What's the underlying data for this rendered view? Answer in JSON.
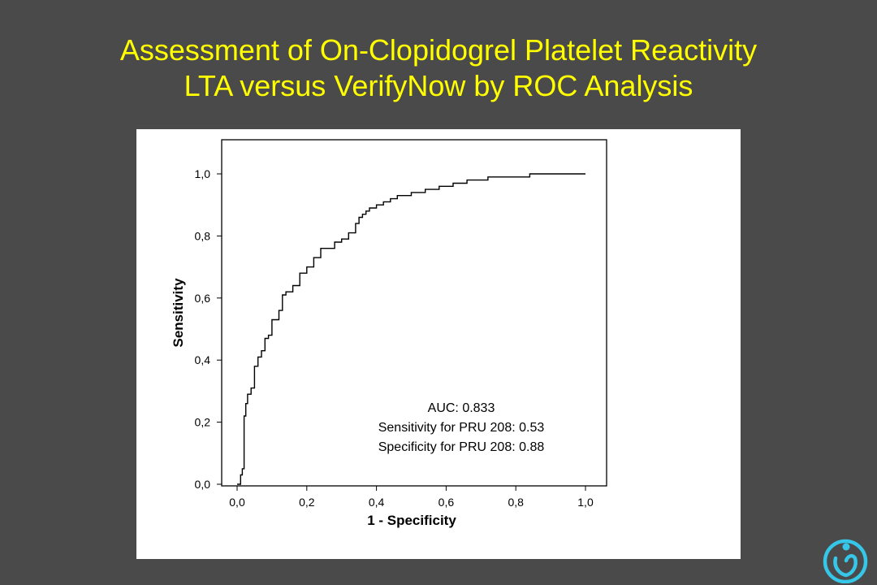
{
  "title": {
    "line1": "Assessment of On-Clopidogrel Platelet Reactivity",
    "line2": "LTA versus VerifyNow by ROC Analysis"
  },
  "colors": {
    "background": "#4a4a4a",
    "title": "#ffff00",
    "panel": "#ffffff",
    "curve": "#000000",
    "logo": "#35c6e8"
  },
  "logo": {
    "icon": "heart-person-icon"
  },
  "chart_data": {
    "type": "line",
    "xlabel": "1 - Specificity",
    "ylabel": "Sensitivity",
    "xlim": [
      0,
      1
    ],
    "ylim": [
      0,
      1
    ],
    "x_ticks": [
      "0,0",
      "0,2",
      "0,4",
      "0,6",
      "0,8",
      "1,0"
    ],
    "y_ticks": [
      "0,0",
      "0,2",
      "0,4",
      "0,6",
      "0,8",
      "1,0"
    ],
    "grid": false,
    "annotations": [
      "AUC: 0.833",
      "Sensitivity for PRU 208: 0.53",
      "Specificity for PRU 208: 0.88"
    ],
    "series": [
      {
        "x": [
          0.0,
          0.01,
          0.01,
          0.015,
          0.015,
          0.02,
          0.02,
          0.025,
          0.025,
          0.03,
          0.03,
          0.04,
          0.04,
          0.05,
          0.05,
          0.06,
          0.06,
          0.07,
          0.07,
          0.08,
          0.08,
          0.09,
          0.09,
          0.1,
          0.1,
          0.12,
          0.12,
          0.13,
          0.13,
          0.14,
          0.14,
          0.16,
          0.16,
          0.18,
          0.18,
          0.2,
          0.2,
          0.22,
          0.22,
          0.24,
          0.24,
          0.28,
          0.28,
          0.3,
          0.3,
          0.32,
          0.32,
          0.34,
          0.34,
          0.35,
          0.35,
          0.36,
          0.36,
          0.37,
          0.37,
          0.38,
          0.38,
          0.4,
          0.4,
          0.42,
          0.42,
          0.44,
          0.44,
          0.46,
          0.46,
          0.5,
          0.5,
          0.54,
          0.54,
          0.58,
          0.58,
          0.62,
          0.62,
          0.66,
          0.66,
          0.72,
          0.72,
          0.78,
          0.78,
          0.84,
          0.84,
          0.86,
          0.86,
          1.0
        ],
        "y": [
          0.0,
          0.0,
          0.03,
          0.03,
          0.05,
          0.05,
          0.22,
          0.22,
          0.26,
          0.26,
          0.29,
          0.29,
          0.31,
          0.31,
          0.38,
          0.38,
          0.41,
          0.41,
          0.43,
          0.43,
          0.47,
          0.47,
          0.48,
          0.48,
          0.53,
          0.53,
          0.56,
          0.56,
          0.61,
          0.61,
          0.62,
          0.62,
          0.64,
          0.64,
          0.68,
          0.68,
          0.7,
          0.7,
          0.73,
          0.73,
          0.76,
          0.76,
          0.78,
          0.78,
          0.79,
          0.79,
          0.81,
          0.81,
          0.84,
          0.84,
          0.86,
          0.86,
          0.87,
          0.87,
          0.88,
          0.88,
          0.89,
          0.89,
          0.9,
          0.9,
          0.91,
          0.91,
          0.92,
          0.92,
          0.93,
          0.93,
          0.94,
          0.94,
          0.95,
          0.95,
          0.96,
          0.96,
          0.97,
          0.97,
          0.98,
          0.98,
          0.99,
          0.99,
          0.99,
          0.99,
          1.0,
          1.0,
          1.0,
          1.0
        ]
      }
    ]
  }
}
